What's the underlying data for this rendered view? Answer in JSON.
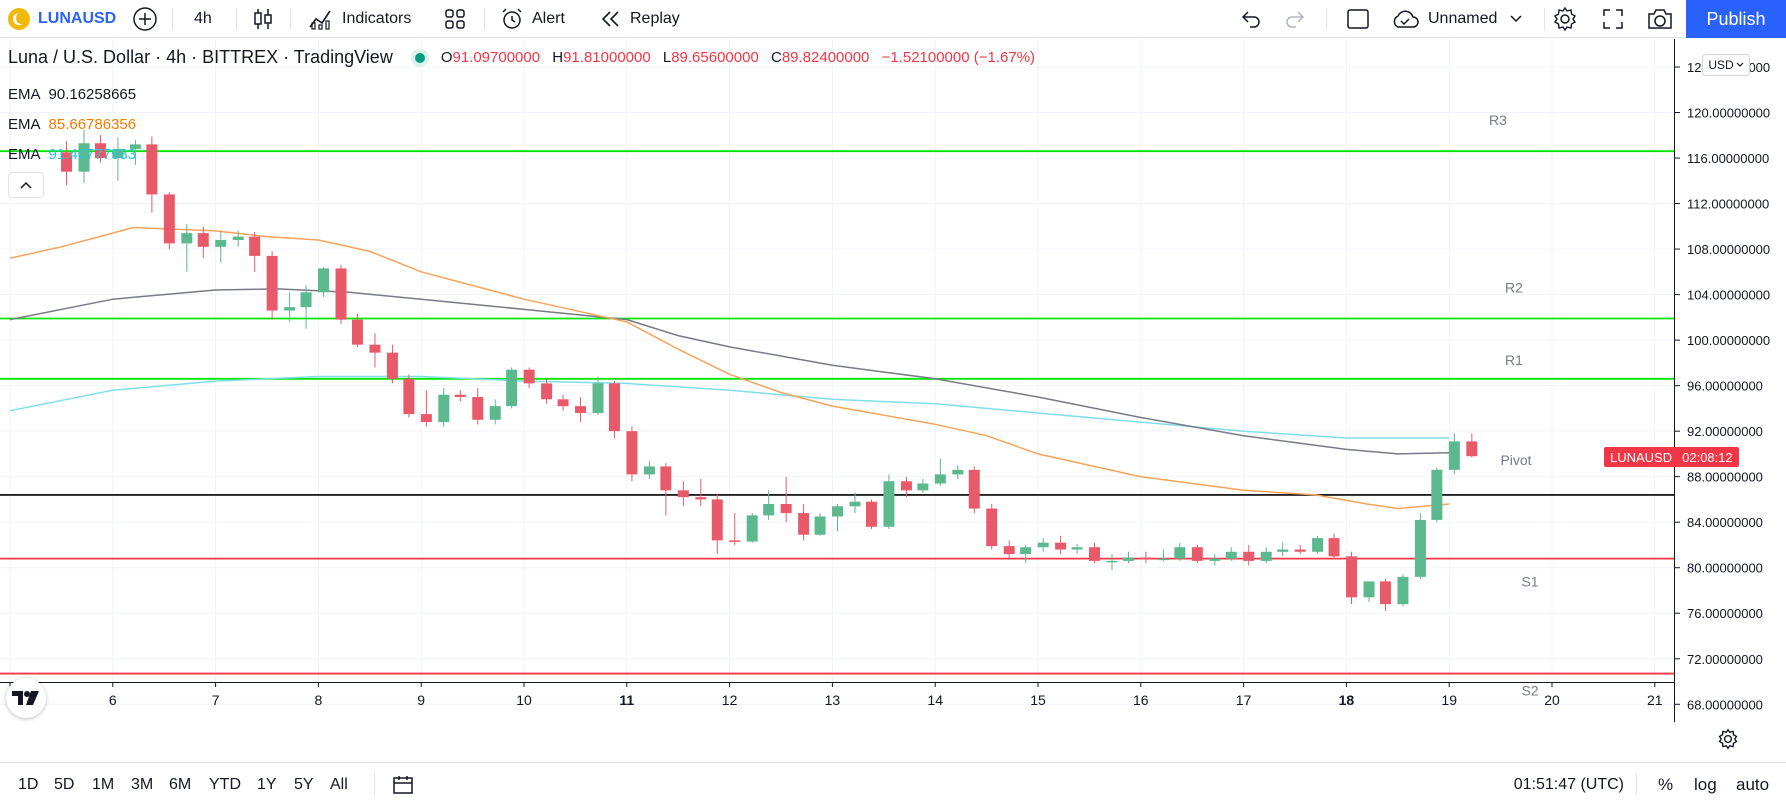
{
  "toolbar": {
    "symbol": "LUNAUSD",
    "interval": "4h",
    "indicators_label": "Indicators",
    "alert_label": "Alert",
    "replay_label": "Replay",
    "layout_name": "Unnamed",
    "publish_label": "Publish"
  },
  "legend": {
    "title": "Luna / U.S. Dollar · 4h · BITTREX · TradingView",
    "open_label": "O",
    "open": "91.09700000",
    "high_label": "H",
    "high": "91.81000000",
    "low_label": "L",
    "low": "89.65600000",
    "close_label": "C",
    "close": "89.82400000",
    "change": "−1.52100000 (−1.67%)",
    "emas": [
      {
        "label": "EMA",
        "value": "90.16258665",
        "color": "#131722"
      },
      {
        "label": "EMA",
        "value": "85.66786356",
        "color": "#f57c00"
      },
      {
        "label": "EMA",
        "value": "91.40777933",
        "color": "#26c6da"
      }
    ]
  },
  "price_axis": {
    "currency_button": "USD",
    "labels": [
      "124.00000000",
      "120.00000000",
      "116.00000000",
      "112.00000000",
      "108.00000000",
      "104.00000000",
      "100.00000000",
      "96.00000000",
      "92.00000000",
      "88.00000000",
      "84.00000000",
      "80.00000000",
      "76.00000000",
      "72.00000000",
      "68.00000000"
    ],
    "price_tag": {
      "symbol": "LUNAUSD",
      "countdown": "02:08:12",
      "color": "#f23645"
    }
  },
  "time_axis": {
    "labels": [
      "5",
      "6",
      "7",
      "8",
      "9",
      "10",
      "11",
      "12",
      "13",
      "14",
      "15",
      "16",
      "17",
      "18",
      "19",
      "20",
      "21"
    ],
    "bold": [
      "11",
      "18"
    ]
  },
  "pivot_labels": {
    "r3": "R3",
    "r2": "R2",
    "r1": "R1",
    "pivot": "Pivot",
    "s1": "S1",
    "s2": "S2"
  },
  "bottombar": {
    "ranges": [
      "1D",
      "5D",
      "1M",
      "3M",
      "6M",
      "YTD",
      "1Y",
      "5Y",
      "All"
    ],
    "time": "01:51:47 (UTC)",
    "percent": "%",
    "log": "log",
    "auto": "auto"
  },
  "chart_data": {
    "type": "candlestick",
    "interval": "4h",
    "x_axis": "day of month",
    "y_range": [
      66,
      126
    ],
    "x_range": [
      5,
      21.2
    ],
    "candles": [
      [
        5.55,
        116.5,
        117.5,
        113.6,
        114.8
      ],
      [
        5.72,
        114.8,
        118.5,
        113.8,
        117.3
      ],
      [
        5.88,
        117.3,
        118.0,
        115.6,
        116.0
      ],
      [
        6.05,
        116.0,
        117.8,
        114.0,
        116.8
      ],
      [
        6.22,
        116.8,
        117.6,
        115.4,
        117.2
      ],
      [
        6.38,
        117.2,
        117.9,
        111.2,
        112.8
      ],
      [
        6.55,
        112.8,
        113.0,
        108.0,
        108.5
      ],
      [
        6.72,
        108.5,
        110.2,
        106.0,
        109.4
      ],
      [
        6.88,
        109.4,
        110.0,
        107.2,
        108.2
      ],
      [
        7.05,
        108.2,
        109.6,
        106.8,
        108.8
      ],
      [
        7.22,
        108.8,
        109.6,
        108.2,
        109.1
      ],
      [
        7.38,
        109.1,
        109.5,
        106.0,
        107.4
      ],
      [
        7.55,
        107.4,
        107.8,
        101.8,
        102.6
      ],
      [
        7.72,
        102.6,
        104.2,
        101.6,
        102.9
      ],
      [
        7.88,
        102.9,
        104.8,
        101.0,
        104.2
      ],
      [
        8.05,
        104.2,
        106.4,
        103.8,
        106.3
      ],
      [
        8.22,
        106.3,
        106.6,
        101.4,
        101.8
      ],
      [
        8.38,
        101.8,
        102.3,
        99.4,
        99.6
      ],
      [
        8.55,
        99.6,
        100.6,
        97.6,
        98.9
      ],
      [
        8.72,
        98.9,
        99.6,
        96.2,
        96.6
      ],
      [
        8.88,
        96.6,
        97.0,
        93.2,
        93.5
      ],
      [
        9.05,
        93.5,
        95.6,
        92.4,
        92.8
      ],
      [
        9.22,
        92.8,
        95.8,
        92.4,
        95.2
      ],
      [
        9.38,
        95.2,
        95.6,
        94.6,
        95.0
      ],
      [
        9.55,
        95.0,
        95.8,
        92.6,
        93.0
      ],
      [
        9.72,
        93.0,
        94.8,
        92.6,
        94.2
      ],
      [
        9.88,
        94.2,
        97.6,
        94.0,
        97.4
      ],
      [
        10.05,
        97.4,
        97.6,
        95.8,
        96.2
      ],
      [
        10.22,
        96.2,
        96.6,
        94.4,
        94.8
      ],
      [
        10.38,
        94.8,
        95.2,
        93.8,
        94.2
      ],
      [
        10.55,
        94.2,
        95.0,
        92.8,
        93.6
      ],
      [
        10.72,
        93.6,
        96.8,
        93.4,
        96.2
      ],
      [
        10.88,
        96.2,
        96.4,
        91.4,
        92.0
      ],
      [
        11.05,
        92.0,
        92.4,
        87.6,
        88.2
      ],
      [
        11.22,
        88.2,
        89.4,
        87.8,
        88.9
      ],
      [
        11.38,
        88.9,
        89.2,
        84.6,
        86.8
      ],
      [
        11.55,
        86.8,
        87.6,
        85.4,
        86.2
      ],
      [
        11.72,
        86.2,
        87.8,
        85.4,
        86.0
      ],
      [
        11.88,
        86.0,
        86.5,
        81.2,
        82.4
      ],
      [
        12.05,
        82.4,
        84.8,
        82.0,
        82.3
      ],
      [
        12.22,
        82.3,
        84.8,
        82.2,
        84.6
      ],
      [
        12.38,
        84.6,
        86.8,
        84.2,
        85.6
      ],
      [
        12.55,
        85.6,
        88.0,
        84.0,
        84.8
      ],
      [
        12.72,
        84.8,
        85.6,
        82.4,
        82.9
      ],
      [
        12.88,
        82.9,
        84.8,
        82.8,
        84.5
      ],
      [
        13.05,
        84.5,
        85.6,
        83.2,
        85.4
      ],
      [
        13.22,
        85.4,
        86.6,
        84.8,
        85.8
      ],
      [
        13.38,
        85.8,
        86.0,
        83.4,
        83.6
      ],
      [
        13.55,
        83.6,
        88.2,
        83.4,
        87.6
      ],
      [
        13.72,
        87.6,
        88.0,
        86.2,
        86.8
      ],
      [
        13.88,
        86.8,
        87.8,
        86.6,
        87.4
      ],
      [
        14.05,
        87.4,
        89.6,
        87.2,
        88.2
      ],
      [
        14.22,
        88.2,
        89.0,
        87.8,
        88.6
      ],
      [
        14.38,
        88.6,
        88.9,
        84.8,
        85.2
      ],
      [
        14.55,
        85.2,
        85.6,
        81.6,
        81.9
      ],
      [
        14.72,
        81.9,
        82.4,
        80.8,
        81.2
      ],
      [
        14.88,
        81.2,
        82.0,
        80.4,
        81.8
      ],
      [
        15.05,
        81.8,
        82.6,
        81.4,
        82.2
      ],
      [
        15.22,
        82.2,
        82.8,
        81.2,
        81.6
      ],
      [
        15.38,
        81.6,
        82.1,
        81.2,
        81.8
      ],
      [
        15.55,
        81.8,
        82.2,
        80.4,
        80.6
      ],
      [
        15.72,
        80.6,
        81.2,
        79.8,
        80.6
      ],
      [
        15.88,
        80.6,
        81.4,
        80.4,
        80.9
      ],
      [
        16.05,
        80.9,
        81.4,
        80.4,
        80.8
      ],
      [
        16.22,
        80.8,
        81.6,
        80.6,
        80.8
      ],
      [
        16.38,
        80.8,
        82.2,
        80.6,
        81.8
      ],
      [
        16.55,
        81.8,
        82.0,
        80.4,
        80.6
      ],
      [
        16.72,
        80.6,
        81.2,
        80.2,
        80.8
      ],
      [
        16.88,
        80.8,
        81.8,
        80.6,
        81.4
      ],
      [
        17.05,
        81.4,
        82.0,
        80.2,
        80.6
      ],
      [
        17.22,
        80.6,
        81.8,
        80.4,
        81.4
      ],
      [
        17.38,
        81.4,
        82.2,
        81.0,
        81.6
      ],
      [
        17.55,
        81.6,
        82.0,
        81.2,
        81.4
      ],
      [
        17.72,
        81.4,
        82.8,
        81.2,
        82.6
      ],
      [
        17.88,
        82.6,
        83.0,
        80.8,
        81.0
      ],
      [
        18.05,
        81.0,
        81.4,
        76.8,
        77.4
      ],
      [
        18.22,
        77.4,
        78.6,
        77.0,
        78.8
      ],
      [
        18.38,
        78.8,
        79.0,
        76.2,
        76.8
      ],
      [
        18.55,
        76.8,
        79.4,
        76.6,
        79.2
      ],
      [
        18.72,
        79.2,
        84.8,
        79.0,
        84.2
      ],
      [
        18.88,
        84.2,
        88.8,
        84.0,
        88.6
      ],
      [
        19.05,
        88.6,
        91.8,
        88.2,
        91.1
      ],
      [
        19.22,
        91.1,
        91.8,
        89.7,
        89.8
      ]
    ],
    "ema_gray": [
      [
        5,
        101.8
      ],
      [
        6,
        103.6
      ],
      [
        7,
        104.4
      ],
      [
        7.6,
        104.5
      ],
      [
        8.3,
        104.2
      ],
      [
        9,
        103.6
      ],
      [
        10,
        102.7
      ],
      [
        11,
        101.8
      ],
      [
        11.5,
        100.4
      ],
      [
        12,
        99.4
      ],
      [
        13,
        97.8
      ],
      [
        14,
        96.6
      ],
      [
        15,
        95.0
      ],
      [
        16,
        93.2
      ],
      [
        17,
        91.6
      ],
      [
        18,
        90.4
      ],
      [
        18.5,
        90.0
      ],
      [
        19,
        90.1
      ]
    ],
    "ema_orange": [
      [
        5,
        107.2
      ],
      [
        5.5,
        108.2
      ],
      [
        6.2,
        109.9
      ],
      [
        7,
        109.6
      ],
      [
        7.5,
        109.1
      ],
      [
        8,
        108.8
      ],
      [
        8.5,
        107.8
      ],
      [
        9,
        106.0
      ],
      [
        10,
        103.6
      ],
      [
        11,
        101.6
      ],
      [
        11.5,
        99.2
      ],
      [
        12,
        97.0
      ],
      [
        12.5,
        95.4
      ],
      [
        13,
        94.2
      ],
      [
        14,
        92.6
      ],
      [
        14.5,
        91.6
      ],
      [
        15,
        90.0
      ],
      [
        16,
        88.0
      ],
      [
        17,
        86.8
      ],
      [
        17.7,
        86.4
      ],
      [
        18.2,
        85.6
      ],
      [
        18.5,
        85.2
      ],
      [
        19,
        85.6
      ]
    ],
    "ema_cyan": [
      [
        5,
        93.8
      ],
      [
        6,
        95.6
      ],
      [
        7,
        96.4
      ],
      [
        8,
        96.8
      ],
      [
        9,
        96.8
      ],
      [
        10,
        96.4
      ],
      [
        11,
        96.2
      ],
      [
        12,
        95.6
      ],
      [
        13,
        94.8
      ],
      [
        14,
        94.4
      ],
      [
        15,
        93.6
      ],
      [
        16,
        92.8
      ],
      [
        17,
        92.0
      ],
      [
        18,
        91.4
      ],
      [
        19,
        91.4
      ]
    ],
    "levels": [
      {
        "name": "R3",
        "value": 116.6,
        "color": "#00e600"
      },
      {
        "name": "R2",
        "value": 101.9,
        "color": "#00e600"
      },
      {
        "name": "R1",
        "value": 96.6,
        "color": "#00e600"
      },
      {
        "name": "Pivot",
        "value": 86.4,
        "color": "#000000"
      },
      {
        "name": "S1",
        "value": 80.8,
        "color": "#f23645"
      },
      {
        "name": "S2",
        "value": 70.7,
        "color": "#f23645"
      }
    ],
    "colors": {
      "up": "#089981",
      "down": "#f23645",
      "up_body": "#5cb88e",
      "down_body": "#e85a6a"
    }
  }
}
